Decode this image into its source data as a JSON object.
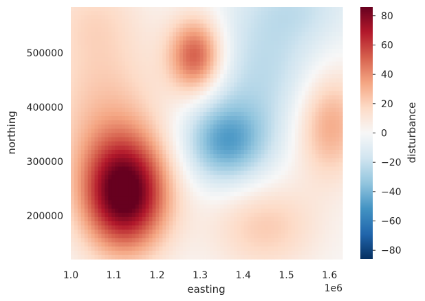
{
  "chart_data": {
    "type": "heatmap",
    "xlabel": "easting",
    "ylabel": "northing",
    "colorbar_label": "disturbance",
    "x_offset_label": "1e6",
    "xlim": [
      1.0,
      1.63
    ],
    "ylim": [
      120000,
      585000
    ],
    "x_ticks": [
      1.0,
      1.1,
      1.2,
      1.3,
      1.4,
      1.5,
      1.6
    ],
    "x_tick_labels": [
      "1.0",
      "1.1",
      "1.2",
      "1.3",
      "1.4",
      "1.5",
      "1.6"
    ],
    "y_ticks": [
      200000,
      300000,
      400000,
      500000
    ],
    "y_tick_labels": [
      "200000",
      "300000",
      "400000",
      "500000"
    ],
    "colorbar_range": [
      -86,
      86
    ],
    "colorbar_ticks": [
      -80,
      -60,
      -40,
      -20,
      0,
      20,
      40,
      60,
      80
    ],
    "colorbar_tick_labels": [
      "−80",
      "−60",
      "−40",
      "−20",
      "0",
      "20",
      "40",
      "60",
      "80"
    ],
    "colormap": "RdBu_r",
    "grid": false,
    "blobs": [
      {
        "x": 1.125,
        "y": 240000,
        "sx": 0.07,
        "sy": 75000,
        "amp": 90
      },
      {
        "x": 1.075,
        "y": 400000,
        "sx": 0.1,
        "sy": 110000,
        "amp": 22
      },
      {
        "x": 1.29,
        "y": 495000,
        "sx": 0.045,
        "sy": 50000,
        "amp": 55
      },
      {
        "x": 1.36,
        "y": 335000,
        "sx": 0.07,
        "sy": 55000,
        "amp": -45
      },
      {
        "x": 1.45,
        "y": 470000,
        "sx": 0.1,
        "sy": 90000,
        "amp": -22
      },
      {
        "x": 1.6,
        "y": 370000,
        "sx": 0.055,
        "sy": 70000,
        "amp": 35
      },
      {
        "x": 1.45,
        "y": 180000,
        "sx": 0.09,
        "sy": 60000,
        "amp": 22
      },
      {
        "x": 1.05,
        "y": 570000,
        "sx": 0.08,
        "sy": 60000,
        "amp": 12
      },
      {
        "x": 1.53,
        "y": 590000,
        "sx": 0.09,
        "sy": 50000,
        "amp": -15
      }
    ]
  }
}
